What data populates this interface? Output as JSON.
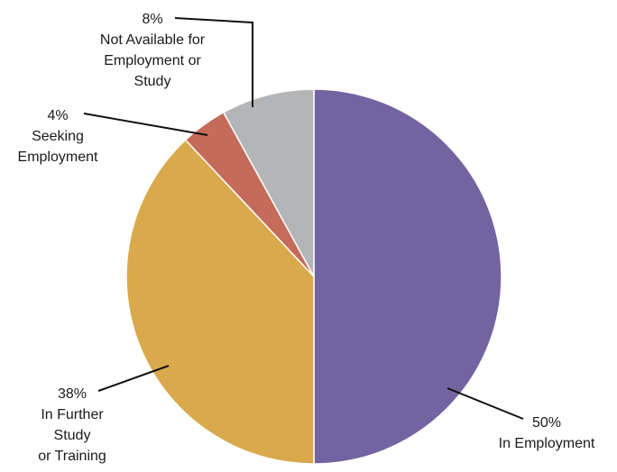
{
  "chart_data": {
    "type": "pie",
    "start_angle_deg": 0,
    "direction": "clockwise",
    "slices": [
      {
        "pct_label": "50%",
        "name_lines": [
          "In Employment"
        ],
        "value": 50,
        "color": "#7264a0"
      },
      {
        "pct_label": "38%",
        "name_lines": [
          "In Further",
          "Study",
          "or Training"
        ],
        "value": 38,
        "color": "#d9a94c"
      },
      {
        "pct_label": "4%",
        "name_lines": [
          "Seeking",
          "Employment"
        ],
        "value": 4,
        "color": "#c46b5a"
      },
      {
        "pct_label": "8%",
        "name_lines": [
          "Not Available for",
          "Employment or",
          "Study"
        ],
        "value": 8,
        "color": "#b3b5b6"
      }
    ]
  }
}
